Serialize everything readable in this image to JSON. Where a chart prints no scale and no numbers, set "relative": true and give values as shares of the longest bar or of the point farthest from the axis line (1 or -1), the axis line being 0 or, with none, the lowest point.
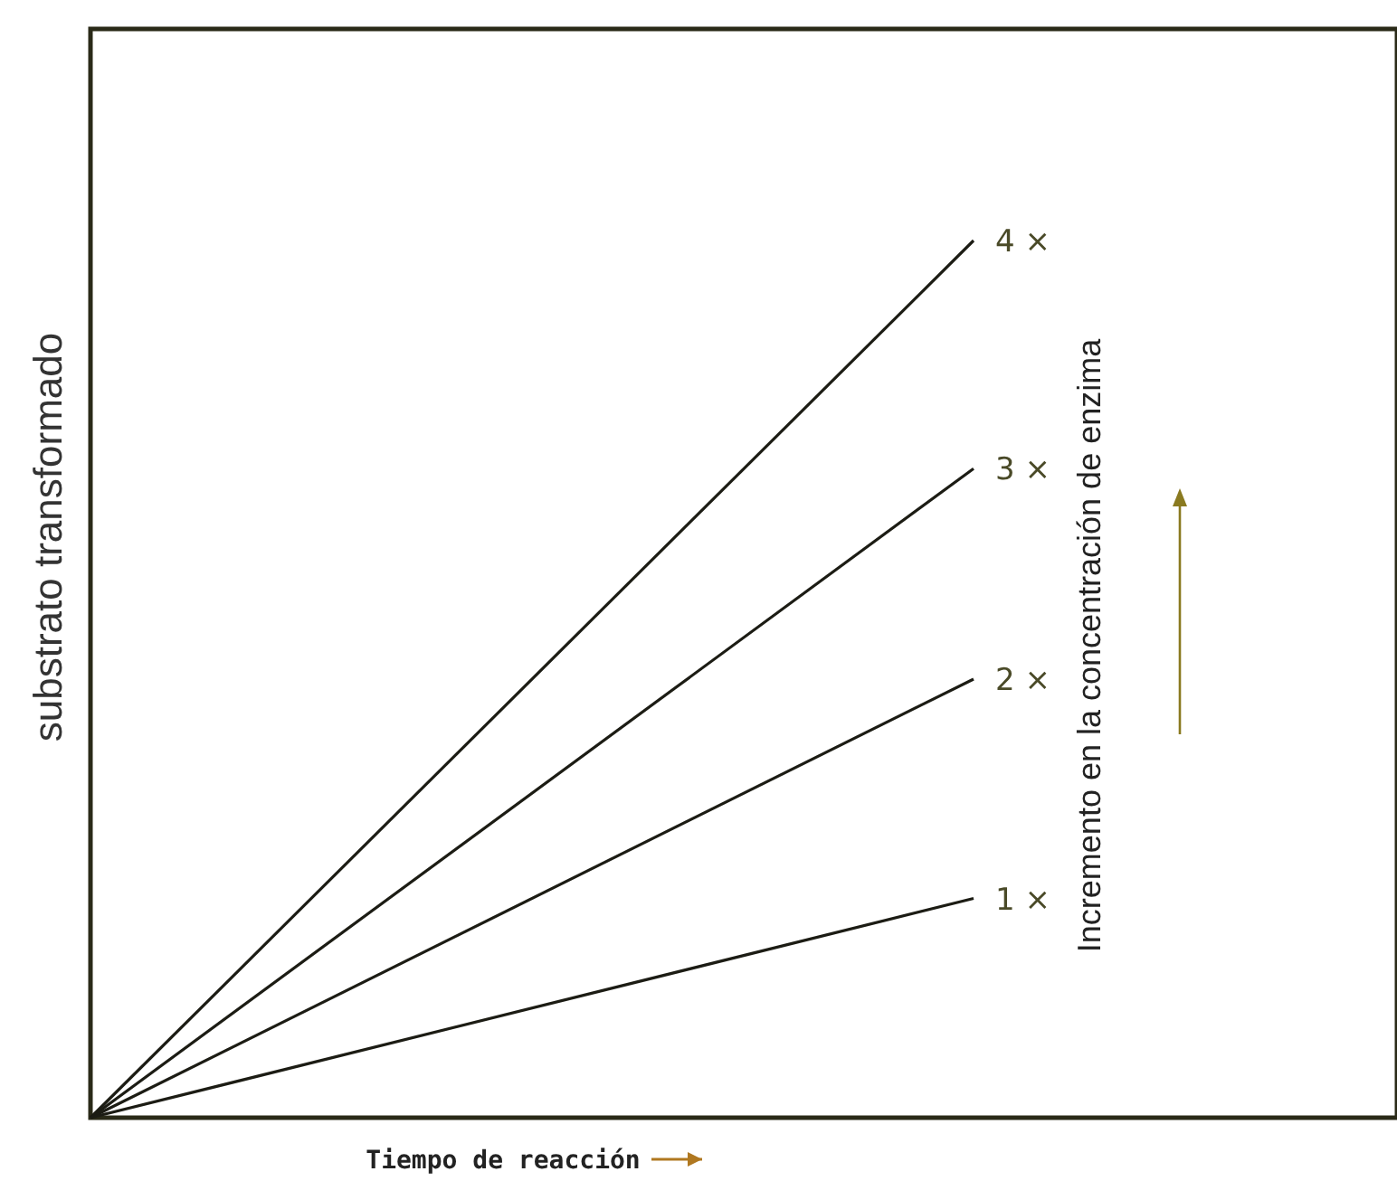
{
  "chart_data": {
    "type": "line",
    "relative": true,
    "xlabel": "Tiempo de reacción",
    "ylabel": "substrato transformado",
    "categories": [
      null,
      null
    ],
    "series": [
      {
        "name": "4 ×",
        "color": "#1c1c14",
        "values": [
          0,
          1
        ]
      },
      {
        "name": "3 ×",
        "color": "#1c1c14",
        "values": [
          0,
          0.74
        ]
      },
      {
        "name": "2 ×",
        "color": "#1c1c14",
        "values": [
          0,
          0.5
        ]
      },
      {
        "name": "1 ×",
        "color": "#1c1c14",
        "values": [
          0,
          0.25
        ]
      }
    ],
    "annotations": [
      "Incremento en la concentración de enzima"
    ],
    "marker": "none",
    "line_style": "solid"
  }
}
